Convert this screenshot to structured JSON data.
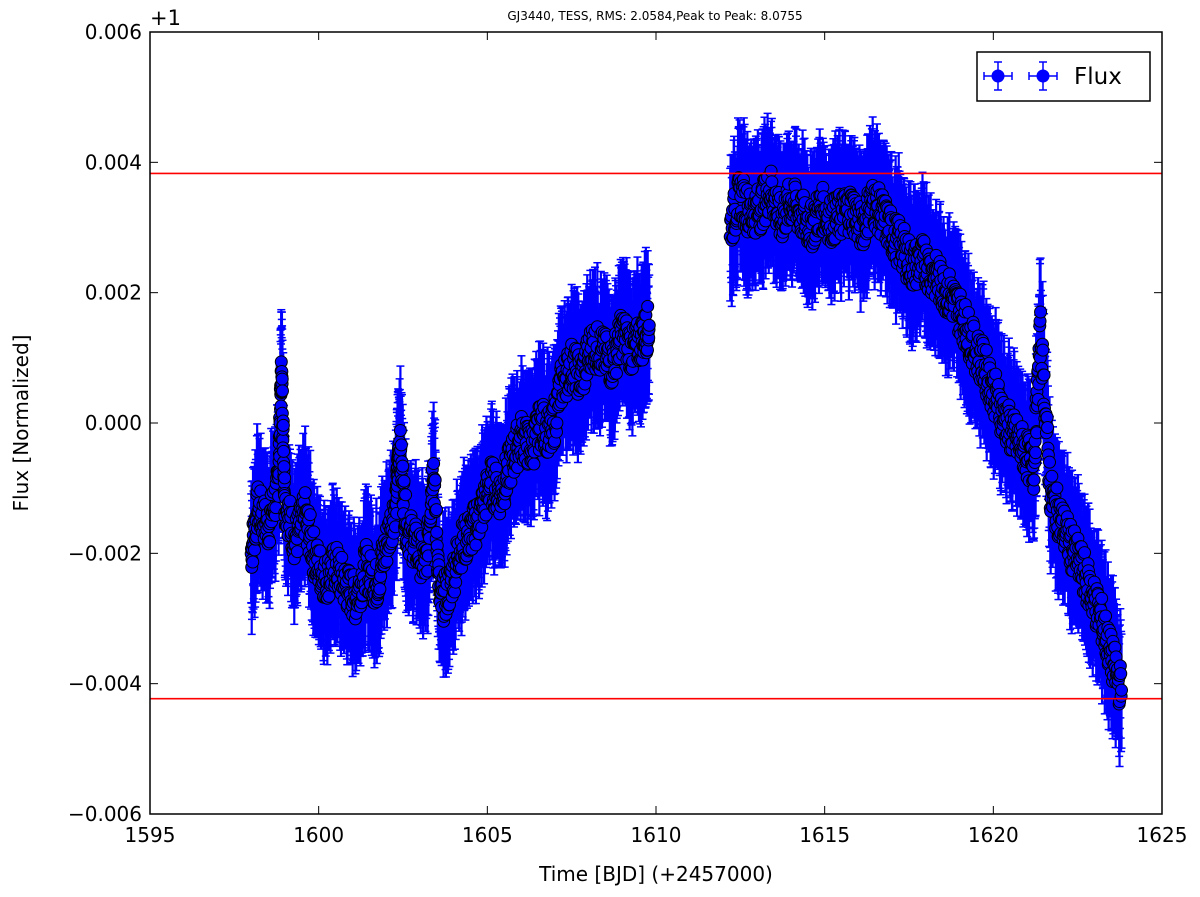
{
  "chart_data": {
    "type": "scatter",
    "title": "GJ3440, TESS, RMS: 2.0584,Peak to Peak: 8.0755",
    "xlabel": "Time [BJD] (+2457000)",
    "ylabel": "Flux [Normalized]",
    "y_offset_label": "+1",
    "xlim": [
      1595,
      1625
    ],
    "ylim": [
      -0.006,
      0.006
    ],
    "x_ticks": [
      1595,
      1600,
      1605,
      1610,
      1615,
      1620,
      1625
    ],
    "x_tick_labels": [
      "1595",
      "1600",
      "1605",
      "1610",
      "1615",
      "1620",
      "1625"
    ],
    "y_ticks": [
      -0.006,
      -0.004,
      -0.002,
      0.0,
      0.002,
      0.004,
      0.006
    ],
    "y_tick_labels": [
      "−0.006",
      "−0.004",
      "−0.002",
      "0.000",
      "0.002",
      "0.004",
      "0.006"
    ],
    "legend": {
      "location": "upper right",
      "label": "Flux"
    },
    "series_color": "#0000ff",
    "marker_edge_color": "#000000",
    "reference_line_color": "#ff0000",
    "reference_lines": [
      0.00383,
      -0.00423
    ],
    "error_bar_half_width": 0.0009,
    "series": [
      {
        "name": "Flux",
        "x": [
          1598.0,
          1598.2,
          1598.5,
          1598.8,
          1598.9,
          1599.0,
          1599.3,
          1599.6,
          1599.9,
          1600.2,
          1600.5,
          1600.8,
          1601.1,
          1601.4,
          1601.7,
          1602.0,
          1602.3,
          1602.4,
          1602.6,
          1602.9,
          1603.2,
          1603.4,
          1603.6,
          1603.9,
          1604.2,
          1604.5,
          1604.8,
          1605.1,
          1605.4,
          1605.7,
          1606.0,
          1606.3,
          1606.6,
          1606.9,
          1607.2,
          1607.5,
          1607.8,
          1608.1,
          1608.4,
          1608.7,
          1609.0,
          1609.3,
          1609.6,
          1609.8,
          1612.2,
          1612.5,
          1612.8,
          1613.1,
          1613.4,
          1613.7,
          1614.0,
          1614.3,
          1614.6,
          1614.9,
          1615.2,
          1615.5,
          1615.8,
          1616.1,
          1616.4,
          1616.7,
          1617.0,
          1617.3,
          1617.6,
          1617.9,
          1618.2,
          1618.5,
          1618.8,
          1619.1,
          1619.4,
          1619.7,
          1620.0,
          1620.3,
          1620.6,
          1620.9,
          1621.2,
          1621.4,
          1621.7,
          1622.0,
          1622.3,
          1622.6,
          1622.9,
          1623.2,
          1623.5,
          1623.8
        ],
        "y": [
          -0.002,
          -0.0013,
          -0.0016,
          -0.001,
          0.0008,
          -0.0012,
          -0.0018,
          -0.0014,
          -0.0021,
          -0.0024,
          -0.0022,
          -0.0025,
          -0.0027,
          -0.0022,
          -0.0025,
          -0.0019,
          -0.0012,
          -0.0003,
          -0.0016,
          -0.0019,
          -0.0022,
          -0.0006,
          -0.0028,
          -0.0025,
          -0.0019,
          -0.0017,
          -0.0014,
          -0.0009,
          -0.0011,
          -0.0006,
          -0.0002,
          -0.0004,
          0.0,
          -0.0002,
          0.0006,
          0.0009,
          0.0007,
          0.0012,
          0.0011,
          0.0009,
          0.0014,
          0.0011,
          0.0013,
          0.0015,
          0.003,
          0.0035,
          0.0032,
          0.0033,
          0.0036,
          0.0031,
          0.0034,
          0.0032,
          0.003,
          0.0033,
          0.0031,
          0.0032,
          0.0033,
          0.003,
          0.0034,
          0.0032,
          0.0029,
          0.0027,
          0.0024,
          0.0025,
          0.0023,
          0.0021,
          0.0019,
          0.0016,
          0.0012,
          0.0009,
          0.0005,
          0.0001,
          -0.0002,
          -0.0004,
          -0.0007,
          0.0014,
          -0.0011,
          -0.0015,
          -0.0019,
          -0.0022,
          -0.0026,
          -0.003,
          -0.0036,
          -0.0041
        ]
      }
    ]
  }
}
